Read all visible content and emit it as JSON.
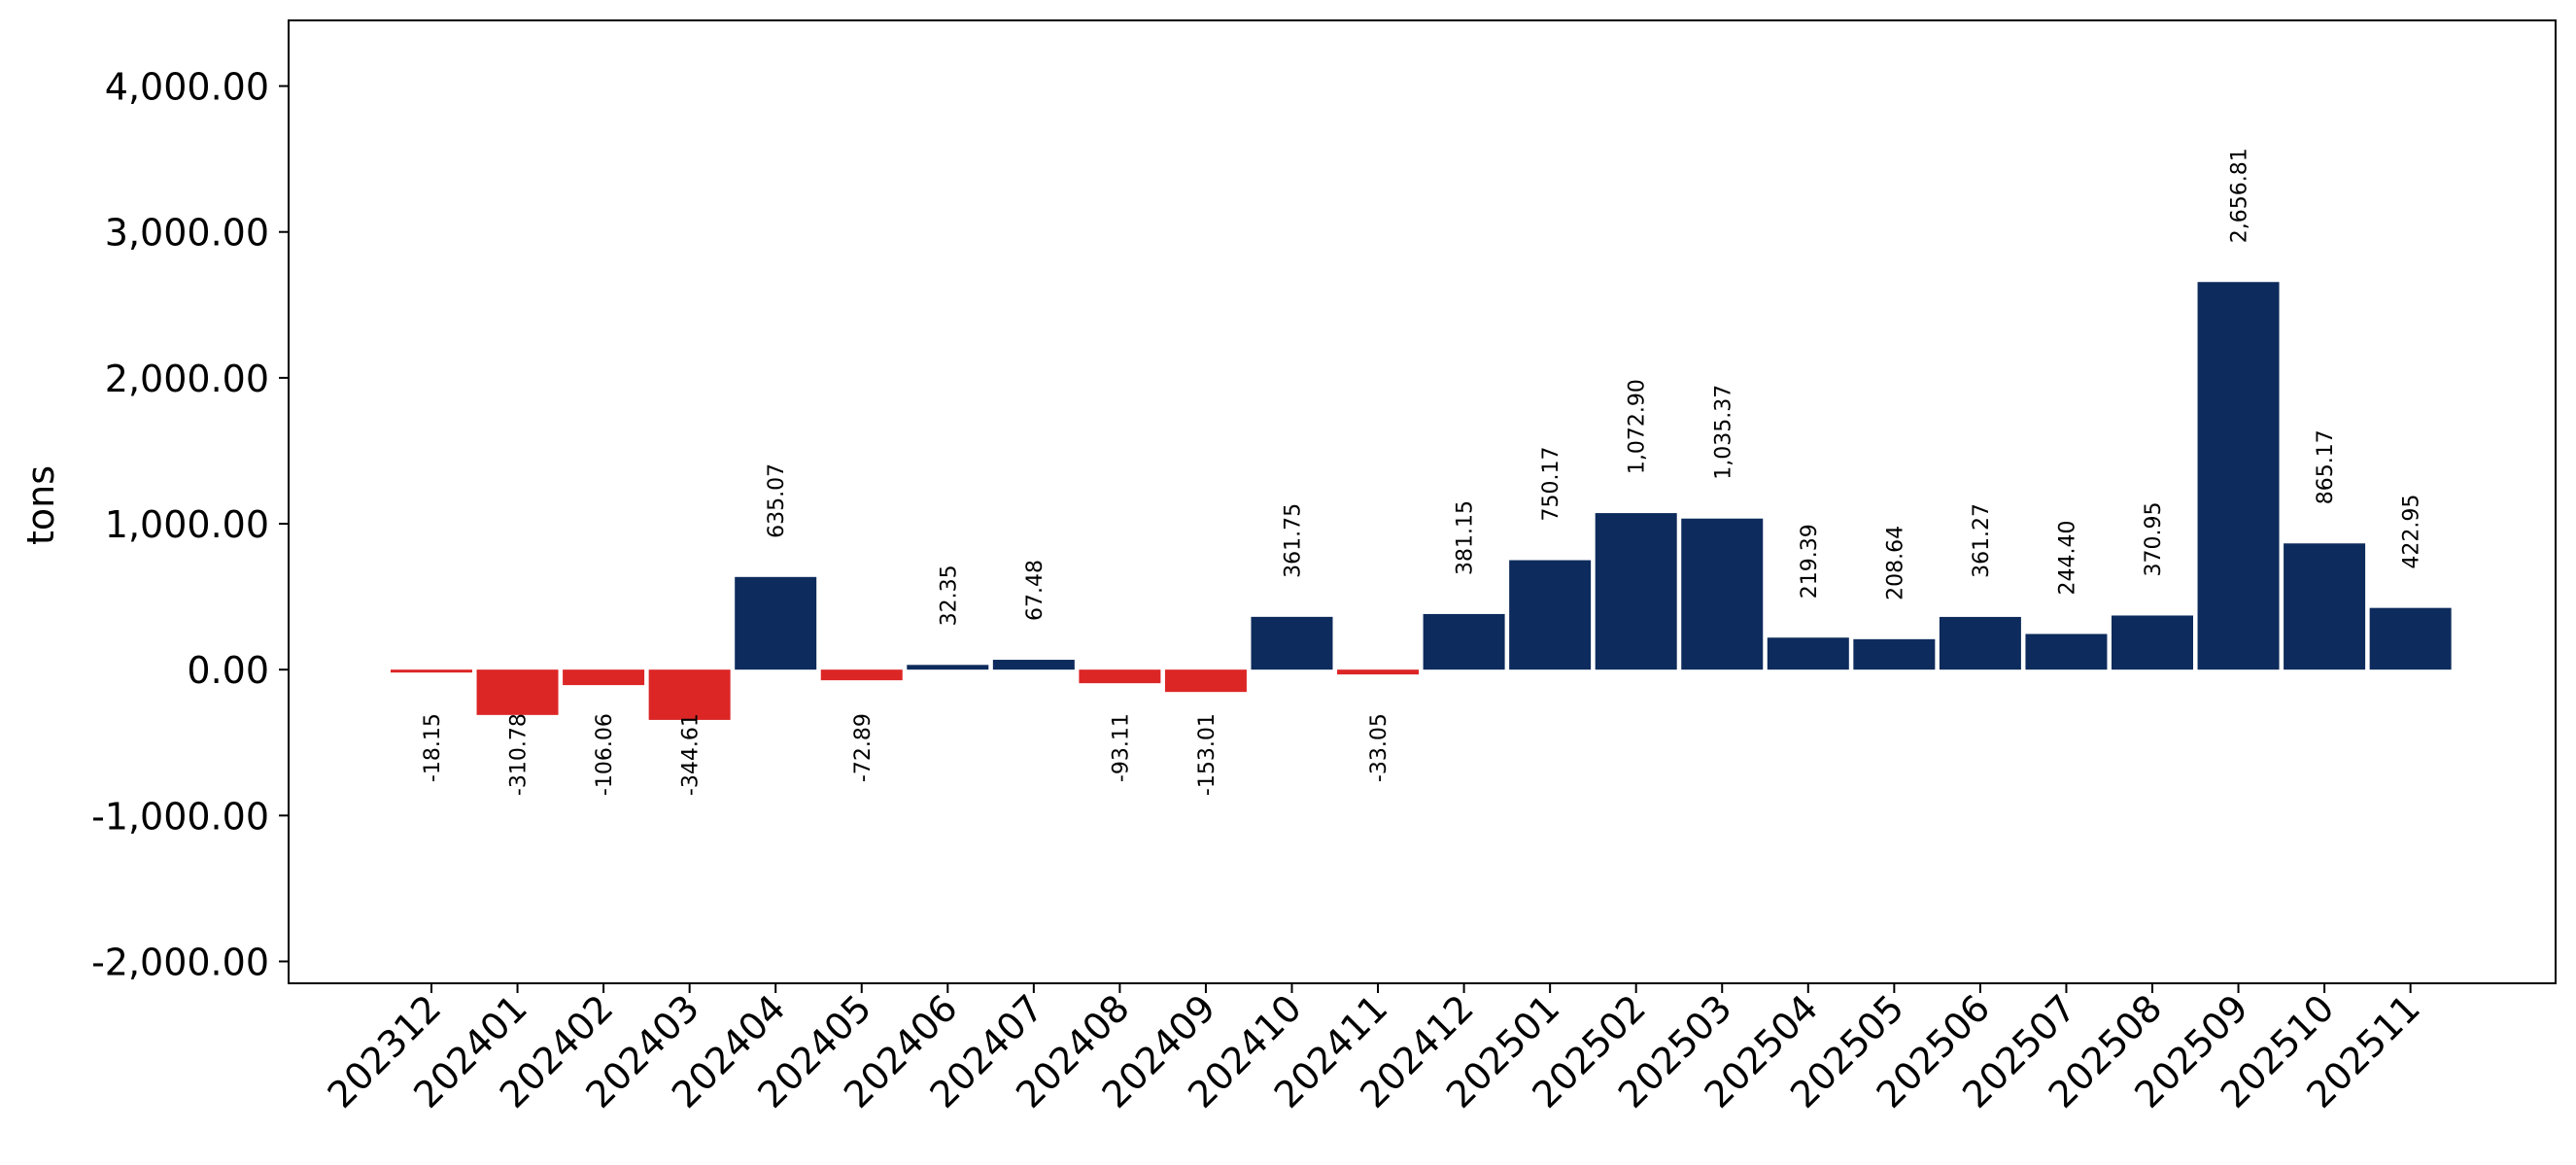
{
  "chart_data": {
    "type": "bar",
    "title": "",
    "xlabel": "",
    "ylabel": "tons",
    "ylim": [
      -2150,
      4450
    ],
    "yticks": [
      -2000,
      -1000,
      0,
      1000,
      2000,
      3000,
      4000
    ],
    "ytick_labels": [
      "-2,000.00",
      "-1,000.00",
      "0.00",
      "1,000.00",
      "2,000.00",
      "3,000.00",
      "4,000.00"
    ],
    "grid": false,
    "legend": "none",
    "categories": [
      "202312",
      "202401",
      "202402",
      "202403",
      "202404",
      "202405",
      "202406",
      "202407",
      "202408",
      "202409",
      "202410",
      "202411",
      "202412",
      "202501",
      "202502",
      "202503",
      "202504",
      "202505",
      "202506",
      "202507",
      "202508",
      "202509",
      "202510",
      "202511"
    ],
    "values": [
      -18.15,
      -310.78,
      -106.06,
      -344.61,
      635.07,
      -72.89,
      32.35,
      67.48,
      -93.11,
      -153.01,
      361.75,
      -33.05,
      381.15,
      750.17,
      1072.9,
      1035.37,
      219.39,
      208.64,
      361.27,
      244.4,
      370.95,
      2656.81,
      865.17,
      422.95
    ],
    "value_labels": [
      "-18.15",
      "-310.78",
      "-106.06",
      "-344.61",
      "635.07",
      "-72.89",
      "32.35",
      "67.48",
      "-93.11",
      "-153.01",
      "361.75",
      "-33.05",
      "381.15",
      "750.17",
      "1,072.90",
      "1,035.37",
      "219.39",
      "208.64",
      "361.27",
      "244.40",
      "370.95",
      "2,656.81",
      "865.17",
      "422.95"
    ],
    "colors": {
      "positive": "#0d2b5c",
      "negative": "#dc2626",
      "axis": "#000000"
    }
  }
}
